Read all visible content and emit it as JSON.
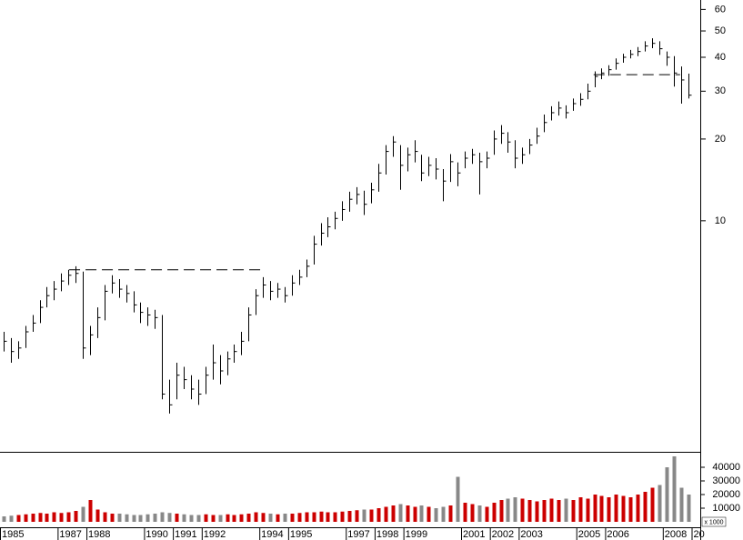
{
  "chart_data": {
    "type": "ohlc",
    "log_y": true,
    "xlim": [
      1985,
      2009.3
    ],
    "xticks": [
      1985,
      1987,
      1988,
      1990,
      1991,
      1992,
      1994,
      1995,
      1997,
      1998,
      1999,
      2001,
      2002,
      2003,
      2005,
      2006,
      2008,
      {
        "value": 2009,
        "label": "20"
      }
    ],
    "ylim": [
      1.41,
      65
    ],
    "yticks": [
      10,
      20,
      30,
      40,
      50,
      60
    ],
    "bar_color": "#000000",
    "volume_up_color": "#cc0000",
    "volume_down_color": "#888888",
    "volume_ylim": [
      0,
      51333
    ],
    "volume_yticks": [
      10000,
      20000,
      30000,
      40000
    ],
    "volume_unit": "x 1000",
    "x": [
      1985.125,
      1985.375,
      1985.625,
      1985.875,
      1986.125,
      1986.375,
      1986.625,
      1986.875,
      1987.125,
      1987.375,
      1987.625,
      1987.875,
      1988.125,
      1988.375,
      1988.625,
      1988.875,
      1989.125,
      1989.375,
      1989.625,
      1989.875,
      1990.125,
      1990.375,
      1990.625,
      1990.875,
      1991.125,
      1991.375,
      1991.625,
      1991.875,
      1992.125,
      1992.375,
      1992.625,
      1992.875,
      1993.125,
      1993.375,
      1993.625,
      1993.875,
      1994.125,
      1994.375,
      1994.625,
      1994.875,
      1995.125,
      1995.375,
      1995.625,
      1995.875,
      1996.125,
      1996.375,
      1996.625,
      1996.875,
      1997.125,
      1997.375,
      1997.625,
      1997.875,
      1998.125,
      1998.375,
      1998.625,
      1998.875,
      1999.125,
      1999.375,
      1999.625,
      1999.875,
      2000.125,
      2000.375,
      2000.625,
      2000.875,
      2001.125,
      2001.375,
      2001.625,
      2001.875,
      2002.125,
      2002.375,
      2002.625,
      2002.875,
      2003.125,
      2003.375,
      2003.625,
      2003.875,
      2004.125,
      2004.375,
      2004.625,
      2004.875,
      2005.125,
      2005.375,
      2005.625,
      2005.875,
      2006.125,
      2006.375,
      2006.625,
      2006.875,
      2007.125,
      2007.375,
      2007.625,
      2007.875,
      2008.125,
      2008.375,
      2008.625,
      2008.875
    ],
    "high": [
      3.9,
      3.7,
      3.6,
      4.1,
      4.5,
      5.1,
      5.7,
      6.0,
      6.4,
      6.6,
      6.8,
      6.5,
      4.1,
      4.8,
      5.8,
      6.3,
      6.1,
      5.8,
      5.5,
      5.0,
      4.8,
      4.7,
      4.5,
      2.6,
      3.0,
      2.9,
      2.7,
      2.6,
      2.9,
      3.5,
      3.2,
      3.3,
      3.5,
      3.9,
      4.8,
      5.6,
      6.2,
      6.0,
      5.9,
      5.7,
      6.3,
      6.6,
      7.2,
      8.8,
      9.8,
      10.3,
      10.8,
      11.8,
      12.8,
      13.3,
      12.9,
      13.8,
      16.2,
      19.0,
      20.5,
      19.0,
      18.6,
      19.8,
      17.5,
      17.2,
      17.0,
      15.5,
      17.6,
      16.4,
      18.0,
      18.4,
      17.8,
      18.0,
      21.5,
      22.5,
      21.2,
      19.8,
      18.6,
      20.0,
      22.0,
      24.6,
      26.4,
      27.5,
      26.6,
      28.2,
      29.5,
      32.0,
      35.5,
      36.4,
      37.4,
      39.6,
      41.2,
      42.6,
      43.6,
      45.8,
      47.0,
      45.8,
      42.0,
      40.4,
      37.0,
      34.8
    ],
    "low": [
      3.3,
      3.0,
      3.1,
      3.4,
      3.9,
      4.2,
      4.8,
      5.1,
      5.5,
      5.8,
      5.9,
      3.1,
      3.2,
      3.7,
      4.3,
      5.4,
      5.2,
      5.0,
      4.6,
      4.2,
      4.1,
      4.0,
      2.2,
      1.95,
      2.2,
      2.4,
      2.2,
      2.1,
      2.3,
      2.6,
      2.5,
      2.7,
      3.0,
      3.2,
      3.6,
      4.5,
      5.2,
      5.1,
      5.2,
      5.0,
      5.3,
      5.8,
      6.2,
      6.9,
      8.1,
      8.7,
      9.3,
      10.0,
      10.8,
      11.5,
      10.5,
      11.6,
      12.8,
      14.8,
      17.2,
      13.0,
      15.2,
      16.4,
      14.0,
      14.6,
      14.2,
      11.8,
      13.9,
      13.4,
      15.6,
      16.2,
      12.5,
      15.6,
      17.5,
      19.2,
      17.8,
      15.6,
      16.2,
      17.6,
      19.2,
      21.2,
      23.4,
      24.4,
      23.8,
      25.4,
      26.5,
      28.0,
      31.0,
      33.2,
      34.2,
      36.0,
      38.2,
      39.6,
      40.4,
      42.0,
      43.2,
      40.8,
      37.2,
      31.2,
      27.0,
      28.2
    ],
    "close": [
      3.6,
      3.3,
      3.4,
      3.9,
      4.2,
      4.8,
      5.3,
      5.6,
      6.0,
      6.3,
      6.4,
      3.4,
      3.8,
      4.4,
      5.5,
      5.9,
      5.6,
      5.4,
      4.9,
      4.6,
      4.5,
      4.4,
      2.3,
      2.1,
      2.7,
      2.6,
      2.4,
      2.3,
      2.7,
      3.0,
      2.8,
      3.1,
      3.3,
      3.6,
      4.5,
      5.3,
      5.8,
      5.5,
      5.6,
      5.3,
      5.9,
      6.2,
      6.8,
      8.2,
      9.0,
      9.5,
      10.2,
      11.0,
      12.0,
      12.5,
      11.5,
      13.0,
      15.0,
      18.0,
      19.5,
      16.0,
      17.5,
      18.0,
      15.0,
      16.0,
      15.5,
      14.0,
      16.5,
      15.0,
      17.0,
      17.5,
      16.5,
      17.0,
      20.0,
      21.0,
      19.5,
      17.0,
      17.5,
      19.0,
      20.5,
      23.0,
      25.0,
      26.0,
      25.0,
      27.0,
      28.0,
      30.0,
      34.0,
      35.0,
      36.0,
      38.0,
      40.0,
      41.0,
      42.0,
      44.0,
      45.0,
      43.0,
      40.0,
      35.0,
      33.0,
      29.0
    ],
    "volume": [
      4000,
      4500,
      5000,
      5500,
      6000,
      6500,
      6000,
      7000,
      6500,
      7000,
      8000,
      11000,
      16000,
      9000,
      7000,
      6000,
      6000,
      5500,
      5000,
      5000,
      5500,
      6000,
      7000,
      6500,
      6000,
      5500,
      5000,
      5000,
      5500,
      5000,
      5000,
      5500,
      5000,
      5500,
      6000,
      7000,
      6500,
      6000,
      5500,
      6000,
      6000,
      6500,
      7000,
      7000,
      7500,
      7000,
      7000,
      7500,
      8000,
      8500,
      9000,
      9000,
      10000,
      11000,
      12000,
      13000,
      12000,
      11000,
      12000,
      11000,
      10000,
      11000,
      12000,
      33000,
      14000,
      13000,
      12000,
      11000,
      14000,
      16000,
      17000,
      18000,
      17000,
      16000,
      15000,
      16000,
      17000,
      16000,
      17000,
      16000,
      18000,
      17000,
      20000,
      19000,
      18000,
      20000,
      19000,
      18000,
      20000,
      22000,
      25000,
      27000,
      40000,
      48000,
      25000,
      20000
    ],
    "levels": [
      {
        "value": 6.6,
        "x": [
          1987.4,
          1994.1
        ]
      },
      {
        "value": 34.5,
        "x": [
          2005.6,
          2008.6
        ]
      }
    ]
  }
}
